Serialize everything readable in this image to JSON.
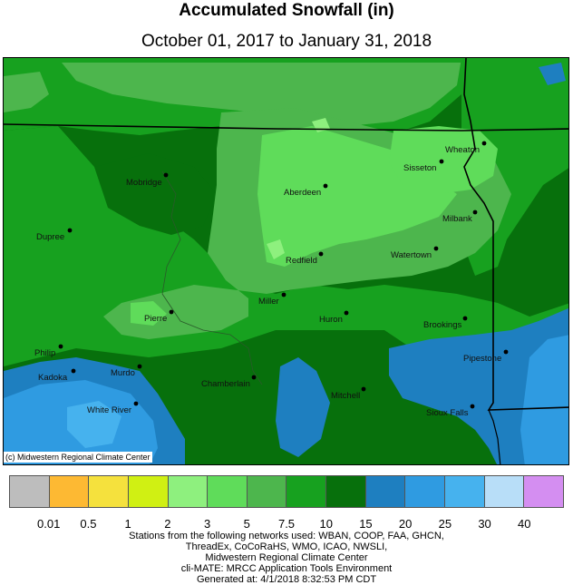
{
  "header": {
    "title": "Accumulated Snowfall (in)",
    "subtitle": "October 01, 2017 to January 31, 2018"
  },
  "map": {
    "copyright": "(c) Midwestern Regional Climate Center",
    "cities": [
      {
        "name": "Mobridge"
      },
      {
        "name": "Aberdeen"
      },
      {
        "name": "Sisseton"
      },
      {
        "name": "Wheaton"
      },
      {
        "name": "Milbank"
      },
      {
        "name": "Dupree"
      },
      {
        "name": "Watertown"
      },
      {
        "name": "Redfield"
      },
      {
        "name": "Miller"
      },
      {
        "name": "Huron"
      },
      {
        "name": "Brookings"
      },
      {
        "name": "Pierre"
      },
      {
        "name": "Philip"
      },
      {
        "name": "Pipestone"
      },
      {
        "name": "Kadoka"
      },
      {
        "name": "Murdo"
      },
      {
        "name": "Chamberlain"
      },
      {
        "name": "Mitchell"
      },
      {
        "name": "White River"
      },
      {
        "name": "Sioux Falls"
      }
    ]
  },
  "legend": {
    "colors": [
      "#bdbdbd",
      "#fdb933",
      "#f5e13d",
      "#d0f013",
      "#8ef07e",
      "#5fdc5a",
      "#4db64d",
      "#17a11f",
      "#07700c",
      "#1e7fc0",
      "#2f9be1",
      "#46b2ee",
      "#b8def8",
      "#d48ef1"
    ],
    "labels": [
      "0.01",
      "0.5",
      "1",
      "2",
      "3",
      "5",
      "7.5",
      "10",
      "15",
      "20",
      "25",
      "30",
      "40"
    ]
  },
  "footer": {
    "lines": [
      "Stations from the following networks used: WBAN, COOP, FAA, GHCN,",
      "ThreadEx, CoCoRaHS, WMO, ICAO, NWSLI,",
      "Midwestern Regional Climate Center",
      "cli-MATE: MRCC Application Tools Environment",
      "Generated at: 4/1/2018 8:32:53 PM CDT"
    ]
  }
}
